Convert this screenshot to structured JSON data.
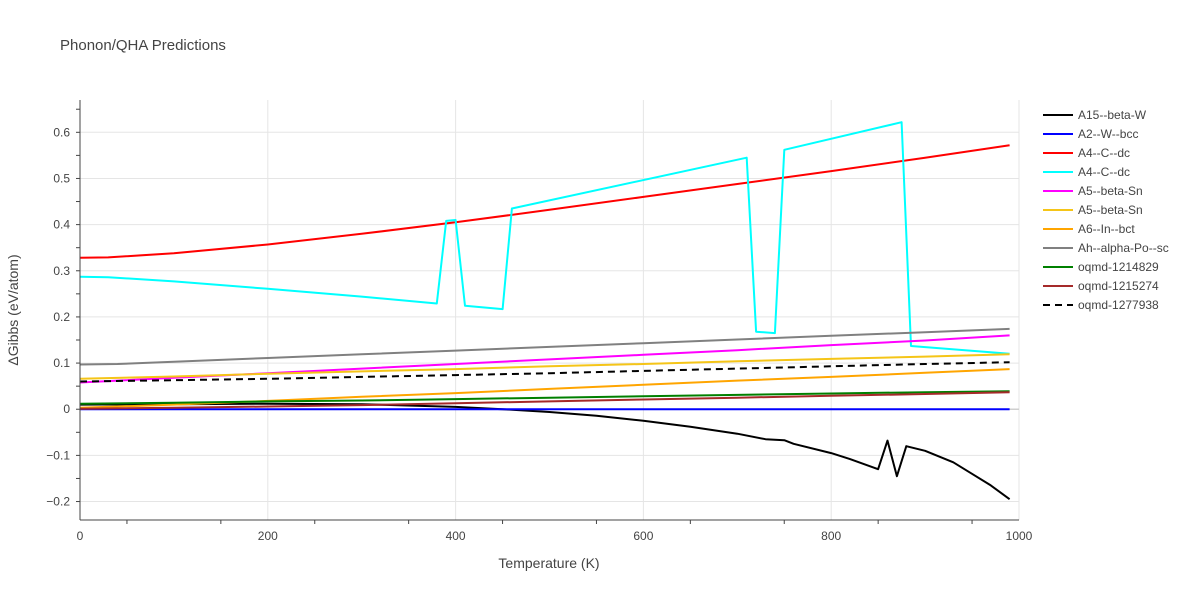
{
  "chart_data": {
    "type": "line",
    "title": "Phonon/QHA Predictions",
    "xlabel": "Temperature (K)",
    "ylabel": "ΔGibbs (eV/atom)",
    "xlim": [
      0,
      1000
    ],
    "ylim": [
      -0.24,
      0.67
    ],
    "xticks": [
      0,
      200,
      400,
      600,
      800,
      1000
    ],
    "xtick_labels": [
      "0",
      "200",
      "400",
      "600",
      "800",
      "1000"
    ],
    "yticks": [
      -0.2,
      -0.1,
      0,
      0.1,
      0.2,
      0.3,
      0.4,
      0.5,
      0.6
    ],
    "ytick_labels": [
      "−0.2",
      "−0.1",
      "0",
      "0.1",
      "0.2",
      "0.3",
      "0.4",
      "0.5",
      "0.6"
    ],
    "grid": true,
    "legend_position": "right",
    "series": [
      {
        "name": "A15--beta-W",
        "color": "#000000",
        "dash": "solid",
        "x": [
          0,
          100,
          200,
          300,
          400,
          450,
          500,
          550,
          600,
          650,
          700,
          730,
          750,
          760,
          800,
          820,
          850,
          860,
          870,
          880,
          900,
          930,
          950,
          970,
          990
        ],
        "y": [
          0.01,
          0.011,
          0.012,
          0.011,
          0.005,
          0.0,
          -0.006,
          -0.014,
          -0.025,
          -0.038,
          -0.053,
          -0.065,
          -0.067,
          -0.075,
          -0.095,
          -0.108,
          -0.13,
          -0.068,
          -0.145,
          -0.08,
          -0.09,
          -0.115,
          -0.14,
          -0.165,
          -0.195
        ]
      },
      {
        "name": "A2--W--bcc",
        "color": "#0000ff",
        "dash": "solid",
        "x": [
          0,
          990
        ],
        "y": [
          0.0,
          0.0
        ]
      },
      {
        "name": "A4--C--dc",
        "color": "#ff0000",
        "dash": "solid",
        "x": [
          0,
          30,
          100,
          200,
          300,
          400,
          500,
          600,
          700,
          800,
          900,
          990
        ],
        "y": [
          0.328,
          0.329,
          0.338,
          0.357,
          0.38,
          0.405,
          0.432,
          0.46,
          0.488,
          0.516,
          0.545,
          0.572
        ]
      },
      {
        "name": "A4--C--dc",
        "color": "#00ffff",
        "dash": "solid",
        "x": [
          0,
          30,
          100,
          200,
          300,
          380,
          390,
          400,
          410,
          450,
          460,
          710,
          720,
          740,
          750,
          875,
          885,
          990
        ],
        "y": [
          0.287,
          0.286,
          0.277,
          0.261,
          0.244,
          0.229,
          0.408,
          0.41,
          0.224,
          0.217,
          0.435,
          0.545,
          0.168,
          0.165,
          0.562,
          0.622,
          0.137,
          0.12
        ]
      },
      {
        "name": "A5--beta-Sn",
        "color": "#ff00ff",
        "dash": "solid",
        "x": [
          0,
          100,
          200,
          300,
          400,
          500,
          600,
          700,
          800,
          900,
          990
        ],
        "y": [
          0.058,
          0.068,
          0.078,
          0.088,
          0.098,
          0.108,
          0.118,
          0.128,
          0.139,
          0.149,
          0.16
        ]
      },
      {
        "name": "A5--beta-Sn",
        "color": "#f5c518",
        "dash": "solid",
        "x": [
          0,
          100,
          200,
          300,
          400,
          500,
          600,
          700,
          800,
          900,
          990
        ],
        "y": [
          0.066,
          0.071,
          0.077,
          0.082,
          0.087,
          0.093,
          0.098,
          0.104,
          0.109,
          0.114,
          0.119
        ]
      },
      {
        "name": "A6--In--bct",
        "color": "#ffa500",
        "dash": "solid",
        "x": [
          0,
          100,
          200,
          300,
          400,
          500,
          600,
          700,
          800,
          900,
          990
        ],
        "y": [
          0.003,
          0.01,
          0.018,
          0.027,
          0.035,
          0.044,
          0.053,
          0.062,
          0.07,
          0.079,
          0.087
        ]
      },
      {
        "name": "Ah--alpha-Po--sc",
        "color": "#808080",
        "dash": "solid",
        "x": [
          0,
          40,
          100,
          200,
          300,
          400,
          500,
          600,
          700,
          800,
          900,
          990
        ],
        "y": [
          0.097,
          0.098,
          0.103,
          0.111,
          0.119,
          0.127,
          0.135,
          0.143,
          0.151,
          0.159,
          0.167,
          0.174
        ]
      },
      {
        "name": "oqmd-1214829",
        "color": "#008000",
        "dash": "solid",
        "x": [
          0,
          100,
          200,
          300,
          400,
          500,
          600,
          700,
          800,
          900,
          990
        ],
        "y": [
          0.012,
          0.014,
          0.017,
          0.019,
          0.022,
          0.025,
          0.028,
          0.031,
          0.034,
          0.037,
          0.039
        ]
      },
      {
        "name": "oqmd-1215274",
        "color": "#a52a2a",
        "dash": "solid",
        "x": [
          0,
          100,
          200,
          300,
          400,
          500,
          600,
          700,
          800,
          900,
          990
        ],
        "y": [
          0.001,
          0.003,
          0.006,
          0.009,
          0.013,
          0.017,
          0.021,
          0.025,
          0.029,
          0.033,
          0.037
        ]
      },
      {
        "name": "oqmd-1277938",
        "color": "#000000",
        "dash": "dash",
        "x": [
          0,
          100,
          200,
          300,
          400,
          500,
          600,
          700,
          800,
          900,
          990
        ],
        "y": [
          0.06,
          0.063,
          0.066,
          0.07,
          0.074,
          0.078,
          0.083,
          0.088,
          0.093,
          0.098,
          0.102
        ]
      }
    ]
  }
}
